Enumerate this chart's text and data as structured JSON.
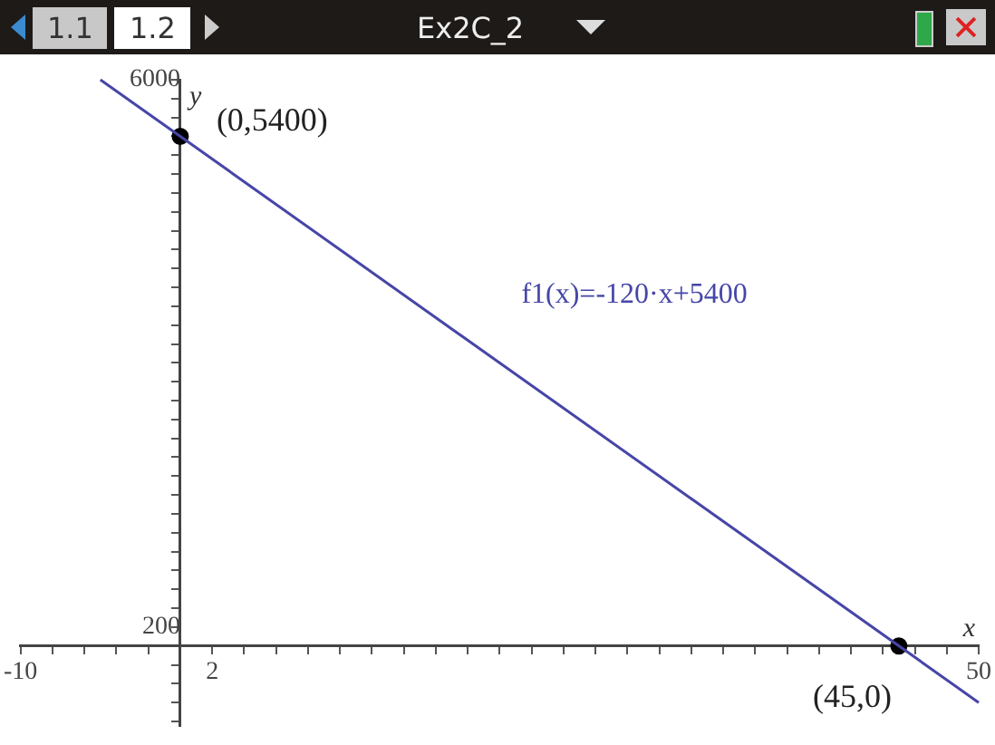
{
  "chart_data": {
    "type": "line",
    "xlabel": "x",
    "ylabel": "y",
    "annotations": [
      "1.1",
      "1.2",
      "Ex2C_2",
      {
        "text": "(0,5400)",
        "x": 0,
        "y": 5400
      },
      {
        "text": "(45,0)",
        "x": 45,
        "y": 0
      }
    ],
    "xlim": [
      -10,
      50
    ],
    "ylim": [
      -850,
      6000
    ],
    "xticks": [
      -10,
      {
        "value": -8,
        "label": null
      },
      {
        "value": -6,
        "label": null
      },
      {
        "value": -4,
        "label": null
      },
      {
        "value": -2,
        "label": null
      },
      2,
      {
        "value": 4,
        "label": null
      },
      {
        "value": 6,
        "label": null
      },
      {
        "value": 8,
        "label": null
      },
      {
        "value": 10,
        "label": null
      },
      {
        "value": 12,
        "label": null
      },
      {
        "value": 14,
        "label": null
      },
      {
        "value": 16,
        "label": null
      },
      {
        "value": 18,
        "label": null
      },
      {
        "value": 20,
        "label": null
      },
      {
        "value": 22,
        "label": null
      },
      {
        "value": 24,
        "label": null
      },
      {
        "value": 26,
        "label": null
      },
      {
        "value": 28,
        "label": null
      },
      {
        "value": 30,
        "label": null
      },
      {
        "value": 32,
        "label": null
      },
      {
        "value": 34,
        "label": null
      },
      {
        "value": 36,
        "label": null
      },
      {
        "value": 38,
        "label": null
      },
      {
        "value": 40,
        "label": null
      },
      {
        "value": 42,
        "label": null
      },
      {
        "value": 44,
        "label": null
      },
      {
        "value": 46,
        "label": null
      },
      {
        "value": 48,
        "label": null
      },
      50
    ],
    "yticks": [
      {
        "value": -800,
        "label": null
      },
      {
        "value": -600,
        "label": null
      },
      {
        "value": -400,
        "label": null
      },
      {
        "value": -200,
        "label": null
      },
      200,
      {
        "value": 400,
        "label": null
      },
      {
        "value": 600,
        "label": null
      },
      {
        "value": 800,
        "label": null
      },
      {
        "value": 1000,
        "label": null
      },
      {
        "value": 1200,
        "label": null
      },
      {
        "value": 1400,
        "label": null
      },
      {
        "value": 1600,
        "label": null
      },
      {
        "value": 1800,
        "label": null
      },
      {
        "value": 2000,
        "label": null
      },
      {
        "value": 2200,
        "label": null
      },
      {
        "value": 2400,
        "label": null
      },
      {
        "value": 2600,
        "label": null
      },
      {
        "value": 2800,
        "label": null
      },
      {
        "value": 3000,
        "label": null
      },
      {
        "value": 3200,
        "label": null
      },
      {
        "value": 3400,
        "label": null
      },
      {
        "value": 3600,
        "label": null
      },
      {
        "value": 3800,
        "label": null
      },
      {
        "value": 4000,
        "label": null
      },
      {
        "value": 4200,
        "label": null
      },
      {
        "value": 4400,
        "label": null
      },
      {
        "value": 4600,
        "label": null
      },
      {
        "value": 4800,
        "label": null
      },
      {
        "value": 5000,
        "label": null
      },
      {
        "value": 5200,
        "label": null
      },
      {
        "value": 5400,
        "label": null
      },
      {
        "value": 5600,
        "label": null
      },
      {
        "value": 5800,
        "label": null
      },
      6000
    ],
    "grid": false,
    "legend": false,
    "series": [
      {
        "name": "f1(x)=-120·x+5400",
        "color": "#4646a8",
        "x": [
          -5,
          50
        ],
        "values": [
          6000,
          -600
        ],
        "marker": "none"
      },
      {
        "type": "scatter",
        "color": "#000000",
        "x": [
          0,
          45
        ],
        "values": [
          5400,
          0
        ],
        "marker": "circle"
      }
    ]
  }
}
